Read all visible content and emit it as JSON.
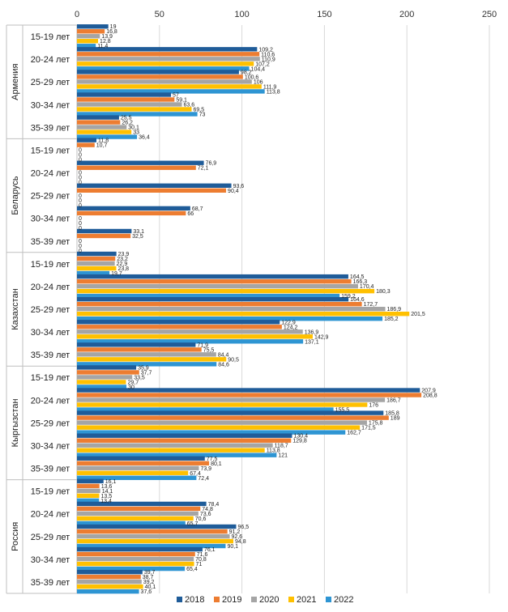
{
  "chart_data": {
    "type": "bar",
    "orientation": "horizontal",
    "xlim": [
      0,
      250
    ],
    "xticks": [
      "0",
      "50",
      "100",
      "150",
      "200",
      "250"
    ],
    "grid": true,
    "legend": "bottom",
    "series": [
      {
        "name": "2018",
        "color": "#1F5C99"
      },
      {
        "name": "2019",
        "color": "#ED7D31"
      },
      {
        "name": "2020",
        "color": "#A5A5A5"
      },
      {
        "name": "2021",
        "color": "#FFC000"
      },
      {
        "name": "2022",
        "color": "#2E95D3"
      }
    ],
    "groups": [
      {
        "country": "Армения",
        "categories": [
          {
            "label": "15-19 лет",
            "values": [
              19,
              16.8,
              13.9,
              12.8,
              11.4
            ],
            "labels": [
              "19",
              "16,8",
              "13,9",
              "12,8",
              "11,4"
            ]
          },
          {
            "label": "20-24 лет",
            "values": [
              109.2,
              110.6,
              110.9,
              107.2,
              104.4
            ],
            "labels": [
              "109,2",
              "110,6",
              "110,9",
              "107,2",
              "104,4"
            ]
          },
          {
            "label": "25-29 лет",
            "values": [
              98.2,
              100.6,
              106,
              111.9,
              113.8
            ],
            "labels": [
              "98,2",
              "100,6",
              "106",
              "111,9",
              "113,8"
            ]
          },
          {
            "label": "30-34 лет",
            "values": [
              57,
              59.1,
              63.6,
              69.5,
              73
            ],
            "labels": [
              "57",
              "59,1",
              "63,6",
              "69,5",
              "73"
            ]
          },
          {
            "label": "35-39 лет",
            "values": [
              25.5,
              26.2,
              30.1,
              33,
              36.4
            ],
            "labels": [
              "25,5",
              "26,2",
              "30,1",
              "33",
              "36,4"
            ]
          }
        ]
      },
      {
        "country": "Беларусь",
        "categories": [
          {
            "label": "15-19 лет",
            "values": [
              11.8,
              10.7,
              0,
              0,
              0
            ],
            "labels": [
              "11,8",
              "10,7",
              "0",
              "0",
              "0"
            ]
          },
          {
            "label": "20-24 лет",
            "values": [
              76.9,
              72.1,
              0,
              0,
              0
            ],
            "labels": [
              "76,9",
              "72,1",
              "0",
              "0",
              "0"
            ]
          },
          {
            "label": "25-29 лет",
            "values": [
              93.6,
              90.4,
              0,
              0,
              0
            ],
            "labels": [
              "93,6",
              "90,4",
              "0",
              "0",
              "0"
            ]
          },
          {
            "label": "30-34 лет",
            "values": [
              68.7,
              66,
              0,
              0,
              0
            ],
            "labels": [
              "68,7",
              "66",
              "0",
              "0",
              "0"
            ]
          },
          {
            "label": "35-39 лет",
            "values": [
              33.1,
              32.5,
              0,
              0,
              0
            ],
            "labels": [
              "33,1",
              "32,5",
              "0",
              "0",
              "0"
            ]
          }
        ]
      },
      {
        "country": "Казахстан",
        "categories": [
          {
            "label": "15-19 лет",
            "values": [
              23.9,
              23.2,
              22.9,
              23.8,
              19.7
            ],
            "labels": [
              "23,9",
              "23,2",
              "22,9",
              "23,8",
              "19,7"
            ]
          },
          {
            "label": "20-24 лет",
            "values": [
              164.5,
              166.3,
              170.4,
              180.3,
              159.2
            ],
            "labels": [
              "164,5",
              "166,3",
              "170,4",
              "180,3",
              "159,2"
            ]
          },
          {
            "label": "25-29 лет",
            "values": [
              164.6,
              172.7,
              186.9,
              201.5,
              185.2
            ],
            "labels": [
              "164,6",
              "172,7",
              "186,9",
              "201,5",
              "185,2"
            ]
          },
          {
            "label": "30-34 лет",
            "values": [
              122.9,
              124.2,
              136.9,
              142.9,
              137.1
            ],
            "labels": [
              "122,9",
              "124,2",
              "136,9",
              "142,9",
              "137,1"
            ]
          },
          {
            "label": "35-39 лет",
            "values": [
              71.9,
              75.5,
              84.4,
              90.5,
              84.6
            ],
            "labels": [
              "71,9",
              "75,5",
              "84,4",
              "90,5",
              "84,6"
            ]
          }
        ]
      },
      {
        "country": "Кыргызстан",
        "categories": [
          {
            "label": "15-19 лет",
            "values": [
              35.9,
              37.7,
              33.5,
              29.7,
              30
            ],
            "labels": [
              "35,9",
              "37,7",
              "33,5",
              "29,7",
              "30"
            ]
          },
          {
            "label": "20-24 лет",
            "values": [
              207.9,
              208.8,
              186.7,
              176,
              155.5
            ],
            "labels": [
              "207,9",
              "208,8",
              "186,7",
              "176",
              "155,5"
            ]
          },
          {
            "label": "25-29 лет",
            "values": [
              185.8,
              189,
              175.8,
              171.5,
              162.7
            ],
            "labels": [
              "185,8",
              "189",
              "175,8",
              "171,5",
              "162,7"
            ]
          },
          {
            "label": "30-34 лет",
            "values": [
              130.4,
              129.8,
              118.7,
              113.8,
              121
            ],
            "labels": [
              "130,4",
              "129,8",
              "118,7",
              "113,8",
              "121"
            ]
          },
          {
            "label": "35-39 лет",
            "values": [
              77.5,
              80.1,
              73.9,
              67.4,
              72.4
            ],
            "labels": [
              "77,5",
              "80,1",
              "73,9",
              "67,4",
              "72,4"
            ]
          }
        ]
      },
      {
        "country": "Россия",
        "categories": [
          {
            "label": "15-19 лет",
            "values": [
              16.1,
              13.6,
              14.1,
              13.5,
              13.4
            ],
            "labels": [
              "16,1",
              "13,6",
              "14,1",
              "13,5",
              "13,4"
            ]
          },
          {
            "label": "20-24 лет",
            "values": [
              78.4,
              74.8,
              73.6,
              70.6,
              65.7
            ],
            "labels": [
              "78,4",
              "74,8",
              "73,6",
              "70,6",
              "65,7"
            ]
          },
          {
            "label": "25-29 лет",
            "values": [
              96.5,
              91.2,
              92.6,
              94.8,
              90.1
            ],
            "labels": [
              "96,5",
              "91,2",
              "92,6",
              "94,8",
              "90,1"
            ]
          },
          {
            "label": "30-34 лет",
            "values": [
              76.1,
              71.6,
              70.8,
              71,
              65.4
            ],
            "labels": [
              "76,1",
              "71,6",
              "70,8",
              "71",
              "65,4"
            ]
          },
          {
            "label": "35-39 лет",
            "values": [
              39.7,
              38.7,
              39.2,
              40.1,
              37.6
            ],
            "labels": [
              "39,7",
              "38,7",
              "39,2",
              "40,1",
              "37,6"
            ]
          }
        ]
      }
    ]
  }
}
